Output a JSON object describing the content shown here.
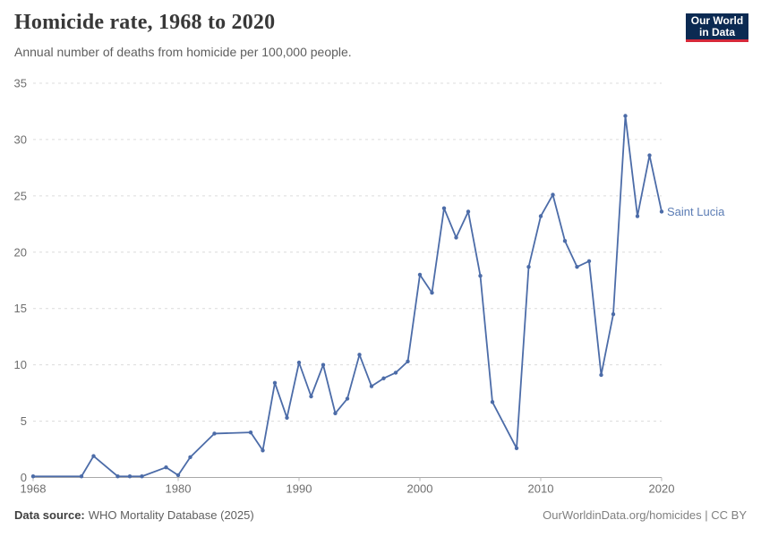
{
  "header": {
    "title": "Homicide rate, 1968 to 2020",
    "subtitle": "Annual number of deaths from homicide per 100,000 people.",
    "logo": {
      "line1": "Our World",
      "line2": "in Data",
      "bg_color": "#0B2A52",
      "accent_color": "#D6293A"
    }
  },
  "chart_data": {
    "type": "line",
    "title": "Homicide rate, 1968 to 2020",
    "xlabel": "",
    "ylabel": "",
    "xlim": [
      1968,
      2020
    ],
    "ylim": [
      0,
      35
    ],
    "xticks": [
      1968,
      1980,
      1990,
      2000,
      2010,
      2020
    ],
    "yticks": [
      0,
      5,
      10,
      15,
      20,
      25,
      30,
      35
    ],
    "grid": "horizontal-dashed",
    "legend_position": "end-of-line-label",
    "colors": {
      "line": "#4C6CA8",
      "label": "#5B7CB4",
      "grid": "#DCDCDC",
      "axis": "#A8A8A8",
      "tick_mark": "#B8B8B8",
      "tick_text": "#6E6E6E"
    },
    "series": [
      {
        "name": "Saint Lucia",
        "points": [
          [
            1968,
            0.1
          ],
          [
            1972,
            0.1
          ],
          [
            1973,
            1.9
          ],
          [
            1975,
            0.1
          ],
          [
            1976,
            0.1
          ],
          [
            1977,
            0.1
          ],
          [
            1979,
            0.9
          ],
          [
            1980,
            0.2
          ],
          [
            1981,
            1.8
          ],
          [
            1983,
            3.9
          ],
          [
            1986,
            4.0
          ],
          [
            1987,
            2.4
          ],
          [
            1988,
            8.4
          ],
          [
            1989,
            5.3
          ],
          [
            1990,
            10.2
          ],
          [
            1991,
            7.2
          ],
          [
            1992,
            10.0
          ],
          [
            1993,
            5.7
          ],
          [
            1994,
            7.0
          ],
          [
            1995,
            10.9
          ],
          [
            1996,
            8.1
          ],
          [
            1997,
            8.8
          ],
          [
            1998,
            9.3
          ],
          [
            1999,
            10.3
          ],
          [
            2000,
            18.0
          ],
          [
            2001,
            16.4
          ],
          [
            2002,
            23.9
          ],
          [
            2003,
            21.3
          ],
          [
            2004,
            23.6
          ],
          [
            2005,
            17.9
          ],
          [
            2006,
            6.7
          ],
          [
            2008,
            2.6
          ],
          [
            2009,
            18.7
          ],
          [
            2010,
            23.2
          ],
          [
            2011,
            25.1
          ],
          [
            2012,
            21.0
          ],
          [
            2013,
            18.7
          ],
          [
            2014,
            19.2
          ],
          [
            2015,
            9.1
          ],
          [
            2016,
            14.5
          ],
          [
            2017,
            32.1
          ],
          [
            2018,
            23.2
          ],
          [
            2019,
            28.6
          ],
          [
            2020,
            23.6
          ]
        ]
      }
    ]
  },
  "footer": {
    "source_label": "Data source:",
    "source_text": "WHO Mortality Database (2025)",
    "citation": "OurWorldinData.org/homicides | CC BY"
  }
}
